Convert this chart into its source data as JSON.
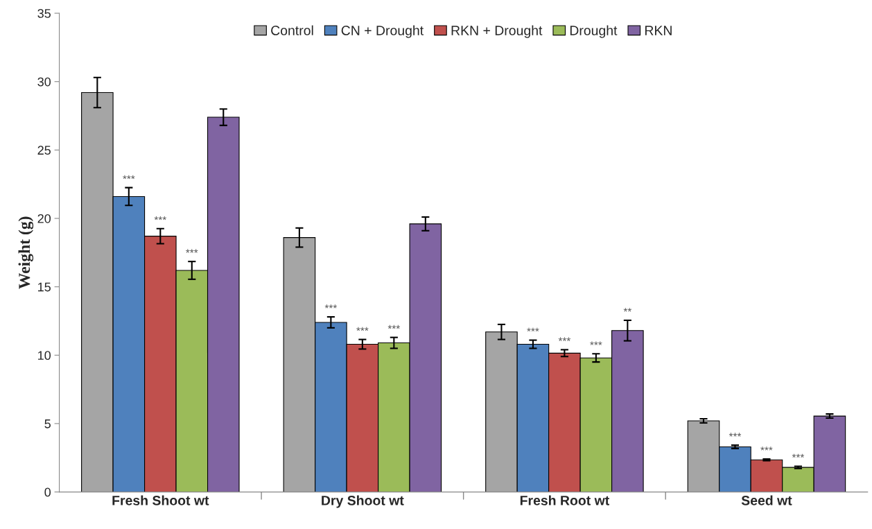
{
  "chart_data": {
    "type": "bar",
    "ylabel": "Weight (g)",
    "categories": [
      "Fresh Shoot wt",
      "Dry Shoot wt",
      "Fresh Root wt",
      "Seed wt"
    ],
    "series": [
      {
        "name": "Control",
        "color": "#a5a5a5",
        "values": [
          29.2,
          18.6,
          11.7,
          5.2
        ],
        "errors": [
          1.1,
          0.7,
          0.55,
          0.15
        ]
      },
      {
        "name": "CN + Drought",
        "color": "#4f81bd",
        "values": [
          21.6,
          12.4,
          10.8,
          3.3
        ],
        "errors": [
          0.65,
          0.4,
          0.3,
          0.12
        ],
        "value_labels": [
          "***",
          "***",
          "***",
          "***"
        ]
      },
      {
        "name": "RKN + Drought",
        "color": "#c0504d",
        "values": [
          18.7,
          10.8,
          10.15,
          2.35
        ],
        "errors": [
          0.55,
          0.35,
          0.25,
          0.06
        ],
        "value_labels": [
          "***",
          "***",
          "***",
          "***"
        ]
      },
      {
        "name": "Drought",
        "color": "#9bbb59",
        "values": [
          16.2,
          10.9,
          9.8,
          1.8
        ],
        "errors": [
          0.65,
          0.4,
          0.3,
          0.08
        ],
        "value_labels": [
          "***",
          "***",
          "***",
          "***"
        ]
      },
      {
        "name": "RKN",
        "color": "#8064a2",
        "values": [
          27.4,
          19.6,
          11.8,
          5.55
        ],
        "errors": [
          0.6,
          0.5,
          0.75,
          0.15
        ],
        "value_labels": [
          null,
          null,
          "**",
          null
        ]
      }
    ],
    "ylim": [
      0,
      35
    ],
    "yticks": [
      0,
      5,
      10,
      15,
      20,
      25,
      30,
      35
    ],
    "grid": false,
    "legend": "top"
  }
}
